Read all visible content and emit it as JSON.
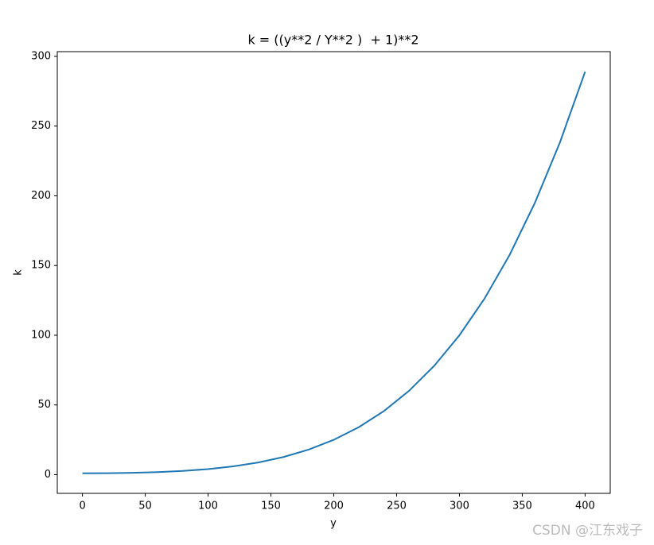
{
  "chart_data": {
    "type": "line",
    "title": "k = ((y**2 / Y**2 )  + 1)**2",
    "x_label": "y",
    "y_label": "k",
    "x": [
      0,
      20,
      40,
      60,
      80,
      100,
      120,
      140,
      160,
      180,
      200,
      220,
      240,
      260,
      280,
      300,
      320,
      340,
      360,
      380,
      400
    ],
    "series": [
      {
        "color": "#1f77b4",
        "values": [
          1,
          1.0816,
          1.3456,
          1.8496,
          2.6896,
          4,
          5.9536,
          8.7616,
          12.6736,
          17.9776,
          25,
          34.1056,
          45.6976,
          60.2176,
          78.1456,
          100,
          126.3376,
          157.7536,
          194.8816,
          238.3936,
          289
        ]
      }
    ],
    "xlim": [
      -20,
      420
    ],
    "ylim": [
      -13.4,
      303.4
    ],
    "xticks": [
      0,
      50,
      100,
      150,
      200,
      250,
      300,
      350,
      400
    ],
    "yticks": [
      0,
      50,
      100,
      150,
      200,
      250,
      300
    ],
    "grid": false,
    "watermark": "CSDN @江东戏子"
  }
}
